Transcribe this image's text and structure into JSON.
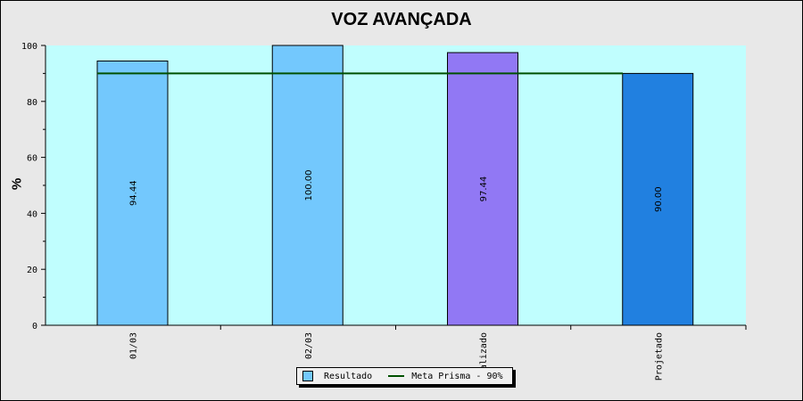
{
  "chart_data": {
    "type": "bar",
    "title": "VOZ AVANÇADA",
    "ylabel": "%",
    "xlabel": "",
    "ylim": [
      0,
      100
    ],
    "yticks": [
      0,
      20,
      40,
      60,
      80,
      100
    ],
    "categories": [
      "01/03",
      "02/03",
      "alizado",
      "Projetado"
    ],
    "values": [
      94.44,
      100.0,
      97.44,
      90.0
    ],
    "value_labels": [
      "94.44",
      "100.00",
      "97.44",
      "90.00"
    ],
    "bar_colors": [
      "#73c8fd",
      "#73c8fd",
      "#9178f4",
      "#2180e0"
    ],
    "series": [
      {
        "name": "Resultado",
        "kind": "bar",
        "color": "#73c8fd"
      },
      {
        "name": "Meta Prisma - 90%",
        "kind": "line",
        "value": 90,
        "color": "#005000"
      }
    ],
    "plot_background": "#c0fefe",
    "grid": false,
    "legend_position": "bottom"
  }
}
